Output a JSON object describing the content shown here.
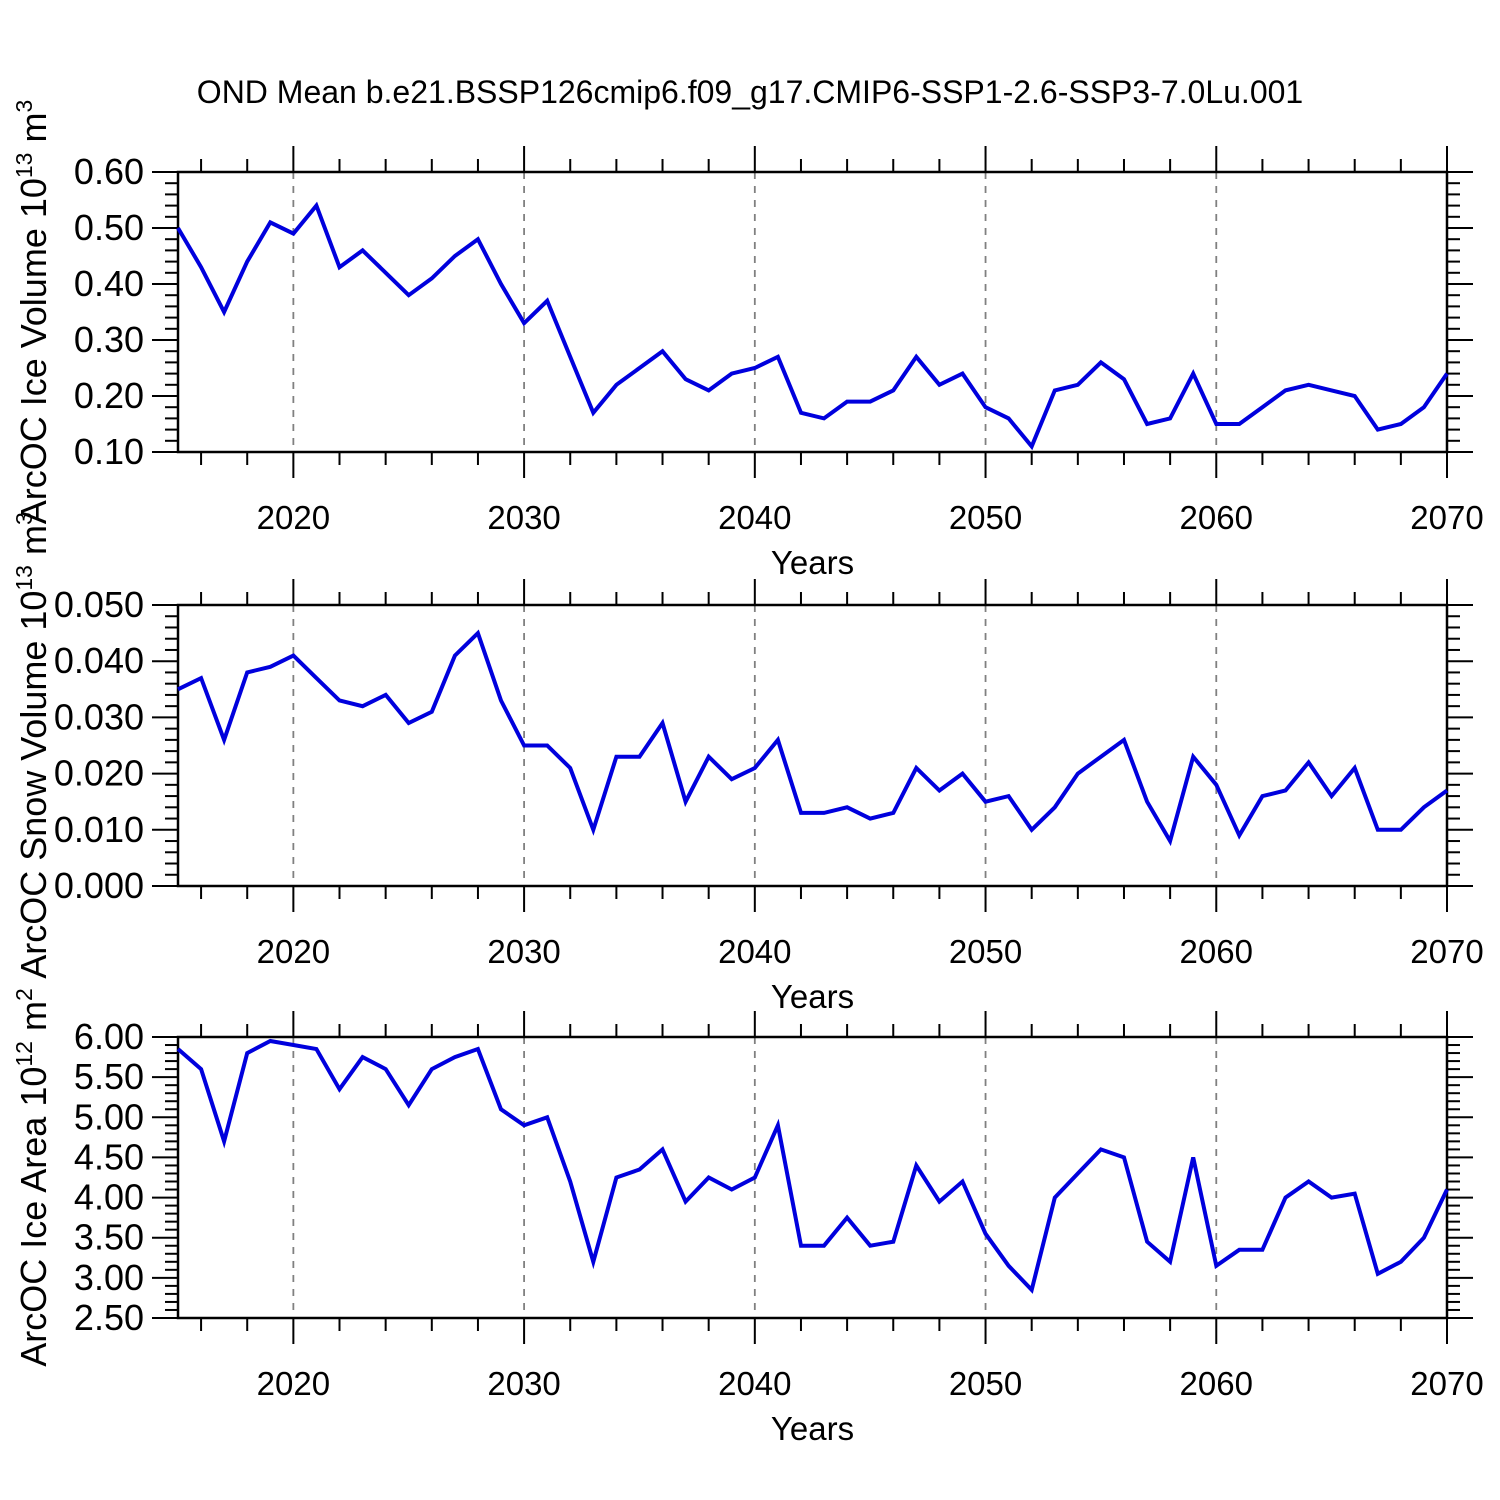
{
  "chart_data": {
    "type": "line",
    "title": "OND Mean b.e21.BSSP126cmip6.f09_g17.CMIP6-SSP1-2.6-SSP3-7.0Lu.001",
    "legend": "none",
    "grid": "vertical-dashed-at-decades",
    "colors": {
      "line": "#0000dd",
      "gridline": "#808080",
      "axis": "#000000",
      "background": "#ffffff"
    },
    "x": {
      "label": "Years",
      "range": [
        2015,
        2070
      ],
      "major_ticks": [
        2020,
        2030,
        2040,
        2050,
        2060,
        2070
      ],
      "minor_tick_step_years": 2,
      "gridline_years": [
        2020,
        2030,
        2040,
        2050,
        2060
      ],
      "years": [
        2015,
        2016,
        2017,
        2018,
        2019,
        2020,
        2021,
        2022,
        2023,
        2024,
        2025,
        2026,
        2027,
        2028,
        2029,
        2030,
        2031,
        2032,
        2033,
        2034,
        2035,
        2036,
        2037,
        2038,
        2039,
        2040,
        2041,
        2042,
        2043,
        2044,
        2045,
        2046,
        2047,
        2048,
        2049,
        2050,
        2051,
        2052,
        2053,
        2054,
        2055,
        2056,
        2057,
        2058,
        2059,
        2060,
        2061,
        2062,
        2063,
        2064,
        2065,
        2066,
        2067,
        2068,
        2069,
        2070
      ]
    },
    "panels": [
      {
        "id": "ice-volume",
        "ylabel_text": "ArcOC Ice Volume 10^13 m^3",
        "ylabel_runs": [
          {
            "text": "ArcOC Ice Volume 10",
            "sup": false
          },
          {
            "text": "13",
            "sup": true
          },
          {
            "text": " m",
            "sup": false
          },
          {
            "text": "3",
            "sup": true
          }
        ],
        "ylim": [
          0.1,
          0.6
        ],
        "ytick_step": 0.1,
        "yminor_step": 0.02,
        "ydecimals": 2,
        "values": [
          0.5,
          0.43,
          0.35,
          0.44,
          0.51,
          0.49,
          0.54,
          0.43,
          0.46,
          0.42,
          0.38,
          0.41,
          0.45,
          0.48,
          0.4,
          0.33,
          0.37,
          0.27,
          0.17,
          0.22,
          0.25,
          0.28,
          0.23,
          0.21,
          0.24,
          0.25,
          0.27,
          0.17,
          0.16,
          0.19,
          0.19,
          0.21,
          0.27,
          0.22,
          0.24,
          0.18,
          0.16,
          0.11,
          0.21,
          0.22,
          0.26,
          0.23,
          0.15,
          0.16,
          0.24,
          0.15,
          0.15,
          0.18,
          0.21,
          0.22,
          0.21,
          0.2,
          0.14,
          0.15,
          0.18,
          0.24
        ]
      },
      {
        "id": "snow-volume",
        "ylabel_text": "ArcOC Snow Volume 10^13 m^3",
        "ylabel_runs": [
          {
            "text": "ArcOC Snow Volume 10",
            "sup": false
          },
          {
            "text": "13",
            "sup": true
          },
          {
            "text": " m",
            "sup": false
          },
          {
            "text": "3",
            "sup": true
          }
        ],
        "ylim": [
          0.0,
          0.05
        ],
        "ytick_step": 0.01,
        "yminor_step": 0.002,
        "ydecimals": 3,
        "values": [
          0.035,
          0.037,
          0.026,
          0.038,
          0.039,
          0.041,
          0.037,
          0.033,
          0.032,
          0.034,
          0.029,
          0.031,
          0.041,
          0.045,
          0.033,
          0.025,
          0.025,
          0.021,
          0.01,
          0.023,
          0.023,
          0.029,
          0.015,
          0.023,
          0.019,
          0.021,
          0.026,
          0.013,
          0.013,
          0.014,
          0.012,
          0.013,
          0.021,
          0.017,
          0.02,
          0.015,
          0.016,
          0.01,
          0.014,
          0.02,
          0.023,
          0.026,
          0.015,
          0.008,
          0.023,
          0.018,
          0.009,
          0.016,
          0.017,
          0.022,
          0.016,
          0.021,
          0.01,
          0.01,
          0.014,
          0.017
        ]
      },
      {
        "id": "ice-area",
        "ylabel_text": "ArcOC Ice Area 10^12 m^2",
        "ylabel_runs": [
          {
            "text": "ArcOC Ice Area 10",
            "sup": false
          },
          {
            "text": "12",
            "sup": true
          },
          {
            "text": " m",
            "sup": false
          },
          {
            "text": "2",
            "sup": true
          }
        ],
        "ylim": [
          2.5,
          6.0
        ],
        "ytick_step": 0.5,
        "yminor_step": 0.1,
        "ydecimals": 2,
        "values": [
          5.85,
          5.6,
          4.7,
          5.8,
          5.95,
          5.9,
          5.85,
          5.35,
          5.75,
          5.6,
          5.15,
          5.6,
          5.75,
          5.85,
          5.1,
          4.9,
          5.0,
          4.2,
          3.2,
          4.25,
          4.35,
          4.6,
          3.95,
          4.25,
          4.1,
          4.25,
          4.9,
          3.4,
          3.4,
          3.75,
          3.4,
          3.45,
          4.4,
          3.95,
          4.2,
          3.55,
          3.15,
          2.85,
          4.0,
          4.3,
          4.6,
          4.5,
          3.45,
          3.2,
          4.5,
          3.15,
          3.35,
          3.35,
          4.0,
          4.2,
          4.0,
          4.05,
          3.05,
          3.2,
          3.5,
          4.1
        ]
      }
    ]
  }
}
